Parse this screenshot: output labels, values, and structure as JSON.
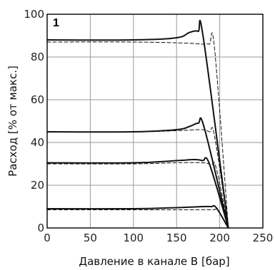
{
  "chart_data": {
    "type": "line",
    "panel_label": "1",
    "xlabel": "Давление в канале B  [бар]",
    "ylabel": "Расход  [% от макс.]",
    "xlim": [
      0,
      250
    ],
    "ylim": [
      0,
      100
    ],
    "xticks": [
      "0",
      "50",
      "100",
      "150",
      "200",
      "250"
    ],
    "yticks": [
      "0",
      "20",
      "40",
      "60",
      "80",
      "100"
    ],
    "grid": true,
    "series": [
      {
        "style": "solid",
        "x": [
          0,
          100,
          150,
          165,
          175,
          181,
          210
        ],
        "y": [
          88,
          88,
          89,
          91.5,
          92,
          89,
          0
        ]
      },
      {
        "style": "dashed",
        "x": [
          0,
          100,
          160,
          180,
          188,
          194,
          210
        ],
        "y": [
          87,
          87,
          86.5,
          86,
          86,
          84,
          0
        ]
      },
      {
        "style": "solid",
        "x": [
          0,
          100,
          150,
          165,
          175,
          182,
          210
        ],
        "y": [
          45,
          45,
          46,
          47.5,
          49,
          47,
          0
        ]
      },
      {
        "style": "dashed",
        "x": [
          0,
          100,
          150,
          178,
          188,
          194,
          210
        ],
        "y": [
          45,
          45,
          45.5,
          46,
          45,
          43,
          0
        ]
      },
      {
        "style": "solid",
        "x": [
          0,
          100,
          150,
          170,
          180,
          188,
          210
        ],
        "y": [
          30.5,
          30.5,
          31.5,
          32,
          31.5,
          30,
          0
        ]
      },
      {
        "style": "dashed",
        "x": [
          0,
          100,
          150,
          180,
          190,
          196,
          210
        ],
        "y": [
          30,
          30,
          30.5,
          30.5,
          29.5,
          28,
          0
        ]
      },
      {
        "style": "solid",
        "x": [
          0,
          100,
          150,
          180,
          190,
          196,
          210
        ],
        "y": [
          9,
          9,
          9.5,
          10,
          10,
          9.5,
          0
        ]
      },
      {
        "style": "dashed",
        "x": [
          0,
          100,
          160,
          190,
          198,
          210
        ],
        "y": [
          8.5,
          8.5,
          8.5,
          8.5,
          8,
          0
        ]
      }
    ]
  }
}
